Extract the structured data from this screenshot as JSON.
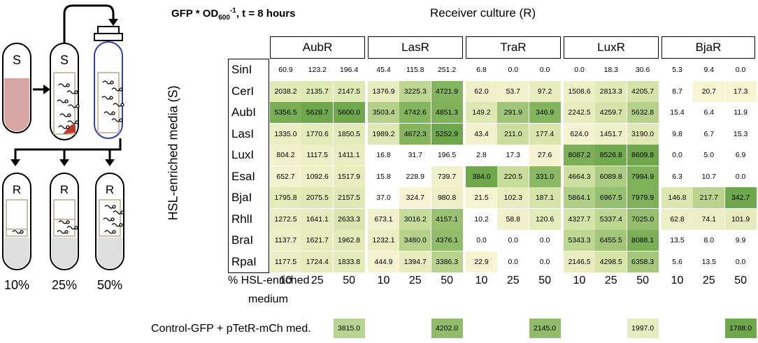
{
  "title_gfp": {
    "pre": "GFP * OD",
    "sub": "600",
    "sup": "-1",
    "post": ", t = 8 hours"
  },
  "title_receiver": "Receiver culture (R)",
  "ylabel": "HSL-enriched media (S)",
  "receivers": [
    "AubR",
    "LasR",
    "TraR",
    "LuxR",
    "BjaR"
  ],
  "media": [
    "SinI",
    "CerI",
    "AubI",
    "LasI",
    "LuxI",
    "EsaI",
    "BjaI",
    "RhlI",
    "BraI",
    "RpaI"
  ],
  "pct_label_1": "% HSL-enriched",
  "pct_label_2": "medium",
  "percents": [
    "10",
    "25",
    "50"
  ],
  "control_label": "Control-GFP + pTetR-mCh med.",
  "control_values": [
    "3815.0",
    "4202.0",
    "2145.0",
    "1997.0",
    "1788.0"
  ],
  "tube_S1": "S",
  "tube_S2": "S",
  "tube_R": [
    "R",
    "R",
    "R"
  ],
  "tube_pcts": [
    "10%",
    "25%",
    "50%"
  ],
  "colors": {
    "low": "#fbf6d9",
    "mid": "#d6e4a8",
    "high": "#6fa84c"
  },
  "matrix": [
    [
      "60.9",
      "123.2",
      "196.4",
      "45.4",
      "115.8",
      "251.2",
      "6.8",
      "0.0",
      "0.0",
      "0.0",
      "18.3",
      "30.6",
      "5.3",
      "9.4",
      "0.0"
    ],
    [
      "2038.2",
      "2135.7",
      "2147.5",
      "1376.9",
      "3225.3",
      "4721.9",
      "62.0",
      "53.7",
      "97.2",
      "1508.6",
      "2813.3",
      "4205.7",
      "8.7",
      "20.7",
      "17.3"
    ],
    [
      "5356.5",
      "5628.7",
      "5600.0",
      "3503.4",
      "4742.6",
      "4851.3",
      "149.2",
      "291.9",
      "346.9",
      "2242.5",
      "4259.7",
      "5632.8",
      "15.4",
      "6.4",
      "11.9"
    ],
    [
      "1335.0",
      "1770.6",
      "1850.5",
      "1989.2",
      "4672.3",
      "5252.9",
      "43.4",
      "211.0",
      "177.4",
      "624.0",
      "1451.7",
      "3190.0",
      "9.8",
      "6.7",
      "15.3"
    ],
    [
      "804.2",
      "1117.5",
      "1411.1",
      "16.8",
      "31.7",
      "196.5",
      "2.8",
      "17.3",
      "27.6",
      "8087.2",
      "8526.8",
      "8609.8",
      "0.0",
      "5.0",
      "6.9"
    ],
    [
      "652.7",
      "1092.6",
      "1517.9",
      "15.8",
      "228.9",
      "739.7",
      "384.0",
      "220.5",
      "331.0",
      "4664.3",
      "6089.8",
      "7994.9",
      "6.3",
      "10.7",
      "0.0"
    ],
    [
      "1795.8",
      "2075.5",
      "2157.5",
      "37.0",
      "324.7",
      "980.8",
      "21.5",
      "102.3",
      "187.1",
      "5864.1",
      "6967.5",
      "7979.9",
      "146.8",
      "217.7",
      "342.7"
    ],
    [
      "1272.5",
      "1641.1",
      "2633.3",
      "673.1",
      "3016.2",
      "4157.1",
      "10.2",
      "58.8",
      "120.6",
      "4327.7",
      "5337.4",
      "7025.0",
      "62.8",
      "74.1",
      "101.9"
    ],
    [
      "1137.7",
      "1621.7",
      "1962.8",
      "1232.1",
      "3480.0",
      "4376.1",
      "0.0",
      "0.0",
      "0.0",
      "5343.3",
      "6455.5",
      "8088.1",
      "13.5",
      "8.0",
      "9.9"
    ],
    [
      "1177.5",
      "1724.4",
      "1833.8",
      "444.9",
      "1394.7",
      "3386.3",
      "22.9",
      "0.0",
      "0.0",
      "2146.5",
      "4298.5",
      "6358.3",
      "5.6",
      "13.5",
      "0.0"
    ]
  ]
}
